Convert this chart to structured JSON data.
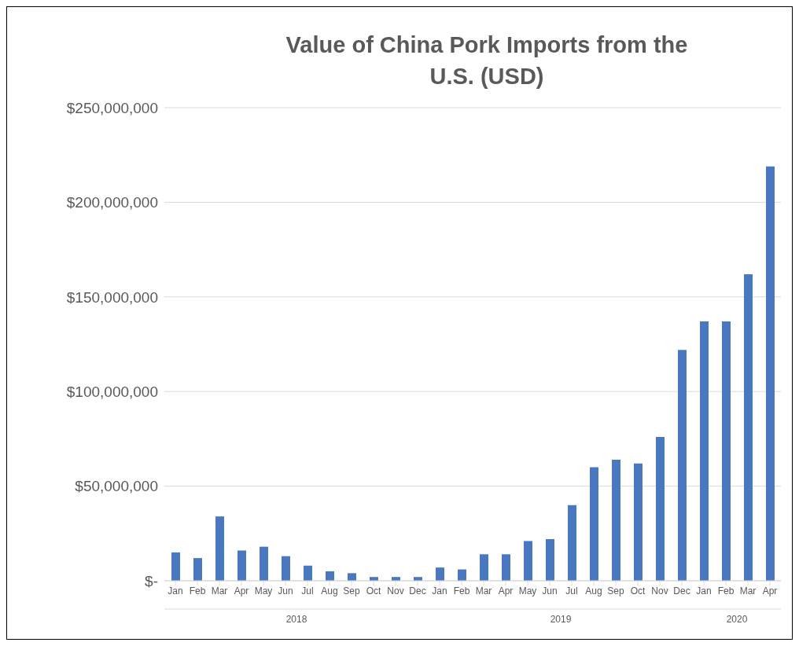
{
  "chart_data": {
    "type": "bar",
    "title": "Value of China Pork Imports from the U.S. (USD)",
    "x": [
      "2018-01",
      "2018-02",
      "2018-03",
      "2018-04",
      "2018-05",
      "2018-06",
      "2018-07",
      "2018-08",
      "2018-09",
      "2018-10",
      "2018-11",
      "2018-12",
      "2019-01",
      "2019-02",
      "2019-03",
      "2019-04",
      "2019-05",
      "2019-06",
      "2019-07",
      "2019-08",
      "2019-09",
      "2019-10",
      "2019-11",
      "2019-12",
      "2020-01",
      "2020-02",
      "2020-03",
      "2020-04"
    ],
    "xticks": [
      {
        "value": "2018-01",
        "label": "Jan"
      },
      {
        "value": "2018-02",
        "label": "Feb"
      },
      {
        "value": "2018-03",
        "label": "Mar"
      },
      {
        "value": "2018-04",
        "label": "Apr"
      },
      {
        "value": "2018-05",
        "label": "May"
      },
      {
        "value": "2018-06",
        "label": "Jun"
      },
      {
        "value": "2018-07",
        "label": "Jul"
      },
      {
        "value": "2018-08",
        "label": "Aug"
      },
      {
        "value": "2018-09",
        "label": "Sep"
      },
      {
        "value": "2018-10",
        "label": "Oct"
      },
      {
        "value": "2018-11",
        "label": "Nov"
      },
      {
        "value": "2018-12",
        "label": "Dec"
      },
      {
        "value": "2019-01",
        "label": "Jan"
      },
      {
        "value": "2019-02",
        "label": "Feb"
      },
      {
        "value": "2019-03",
        "label": "Mar"
      },
      {
        "value": "2019-04",
        "label": "Apr"
      },
      {
        "value": "2019-05",
        "label": "May"
      },
      {
        "value": "2019-06",
        "label": "Jun"
      },
      {
        "value": "2019-07",
        "label": "Jul"
      },
      {
        "value": "2019-08",
        "label": "Aug"
      },
      {
        "value": "2019-09",
        "label": "Sep"
      },
      {
        "value": "2019-10",
        "label": "Oct"
      },
      {
        "value": "2019-11",
        "label": "Nov"
      },
      {
        "value": "2019-12",
        "label": "Dec"
      },
      {
        "value": "2020-01",
        "label": "Jan"
      },
      {
        "value": "2020-02",
        "label": "Feb"
      },
      {
        "value": "2020-03",
        "label": "Mar"
      },
      {
        "value": "2020-04",
        "label": "Apr"
      }
    ],
    "values": [
      15000000,
      12000000,
      34000000,
      16000000,
      18000000,
      13000000,
      8000000,
      5000000,
      4000000,
      2000000,
      2000000,
      2000000,
      7000000,
      6000000,
      14000000,
      14000000,
      21000000,
      22000000,
      40000000,
      60000000,
      64000000,
      62000000,
      76000000,
      122000000,
      137000000,
      137000000,
      162000000,
      219000000
    ],
    "xlim": [
      "2017-12-16",
      "2020-04-16"
    ],
    "annotations": [
      "2018",
      "2019",
      "2020"
    ],
    "color": "#4a78c0",
    "ylim": [
      0,
      250000000
    ],
    "yticks": [
      {
        "value": 0,
        "label": "$-"
      },
      {
        "value": 50000000,
        "label": "$50,000,000"
      },
      {
        "value": 100000000,
        "label": "$100,000,000"
      },
      {
        "value": 150000000,
        "label": "$150,000,000"
      },
      {
        "value": 200000000,
        "label": "$200,000,000"
      },
      {
        "value": 250000000,
        "label": "$250,000,000"
      }
    ],
    "grid": "y",
    "legend": false
  }
}
